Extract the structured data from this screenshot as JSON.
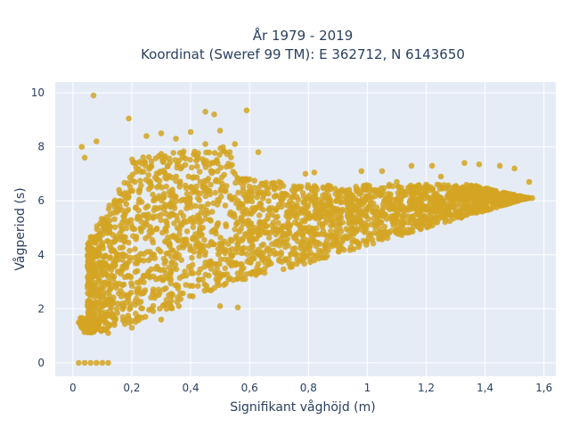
{
  "chart_data": {
    "type": "scatter",
    "title_line1": "År 1979 - 2019",
    "title_line2": "Koordinat (Sweref 99 TM): E 362712, N 6143650",
    "xlabel": "Signifikant våghöjd (m)",
    "ylabel": "Vågperiod (s)",
    "xlim": [
      -0.06,
      1.64
    ],
    "ylim": [
      -0.5,
      10.4
    ],
    "xticks": [
      0,
      0.2,
      0.4,
      0.6,
      0.8,
      1,
      1.2,
      1.4,
      1.6
    ],
    "xtick_labels": [
      "0",
      "0,2",
      "0,4",
      "0,6",
      "0,8",
      "1",
      "1,2",
      "1,4",
      "1,6"
    ],
    "yticks": [
      0,
      2,
      4,
      6,
      8,
      10
    ],
    "ytick_labels": [
      "0",
      "2",
      "4",
      "6",
      "8",
      "10"
    ],
    "grid": true,
    "legend": "none",
    "colors": {
      "marker": "#d4a422",
      "plot_background": "#e5ecf6",
      "grid": "#ffffff",
      "text": "#2a3f5f"
    },
    "points": [
      [
        0.07,
        9.9
      ],
      [
        0.19,
        9.05
      ],
      [
        0.08,
        8.2
      ],
      [
        0.03,
        8.0
      ],
      [
        0.04,
        7.6
      ],
      [
        0.45,
        9.3
      ],
      [
        0.48,
        9.2
      ],
      [
        0.59,
        9.35
      ],
      [
        0.5,
        8.6
      ],
      [
        0.55,
        8.1
      ],
      [
        0.63,
        7.8
      ],
      [
        0.3,
        8.5
      ],
      [
        0.4,
        8.55
      ],
      [
        0.6,
        6.8
      ],
      [
        0.7,
        6.7
      ],
      [
        0.85,
        6.5
      ],
      [
        0.98,
        7.1
      ],
      [
        1.05,
        7.1
      ],
      [
        1.15,
        7.3
      ],
      [
        1.22,
        7.3
      ],
      [
        1.33,
        7.4
      ],
      [
        1.38,
        7.35
      ],
      [
        1.45,
        7.3
      ],
      [
        1.5,
        7.2
      ],
      [
        1.55,
        6.7
      ],
      [
        1.25,
        6.9
      ],
      [
        1.1,
        6.7
      ],
      [
        0.79,
        7.0
      ],
      [
        0.82,
        7.05
      ],
      [
        0.02,
        0.0
      ],
      [
        0.04,
        0.0
      ],
      [
        0.06,
        0.0
      ],
      [
        0.08,
        0.0
      ],
      [
        0.1,
        0.0
      ],
      [
        0.12,
        0.0
      ],
      [
        0.02,
        1.5
      ],
      [
        0.03,
        1.3
      ],
      [
        0.36,
        2.1
      ],
      [
        0.5,
        2.1
      ],
      [
        0.56,
        2.05
      ],
      [
        1.3,
        5.6
      ],
      [
        1.4,
        5.8
      ],
      [
        1.45,
        6.0
      ],
      [
        1.52,
        6.1
      ],
      [
        1.56,
        6.1
      ],
      [
        0.12,
        1.1
      ],
      [
        0.2,
        1.3
      ],
      [
        0.3,
        1.6
      ],
      [
        0.25,
        8.4
      ],
      [
        0.35,
        8.3
      ],
      [
        0.45,
        8.1
      ],
      [
        0.55,
        7.0
      ],
      [
        0.65,
        6.6
      ],
      [
        0.9,
        6.3
      ],
      [
        1.0,
        6.4
      ],
      [
        1.2,
        6.6
      ]
    ]
  }
}
